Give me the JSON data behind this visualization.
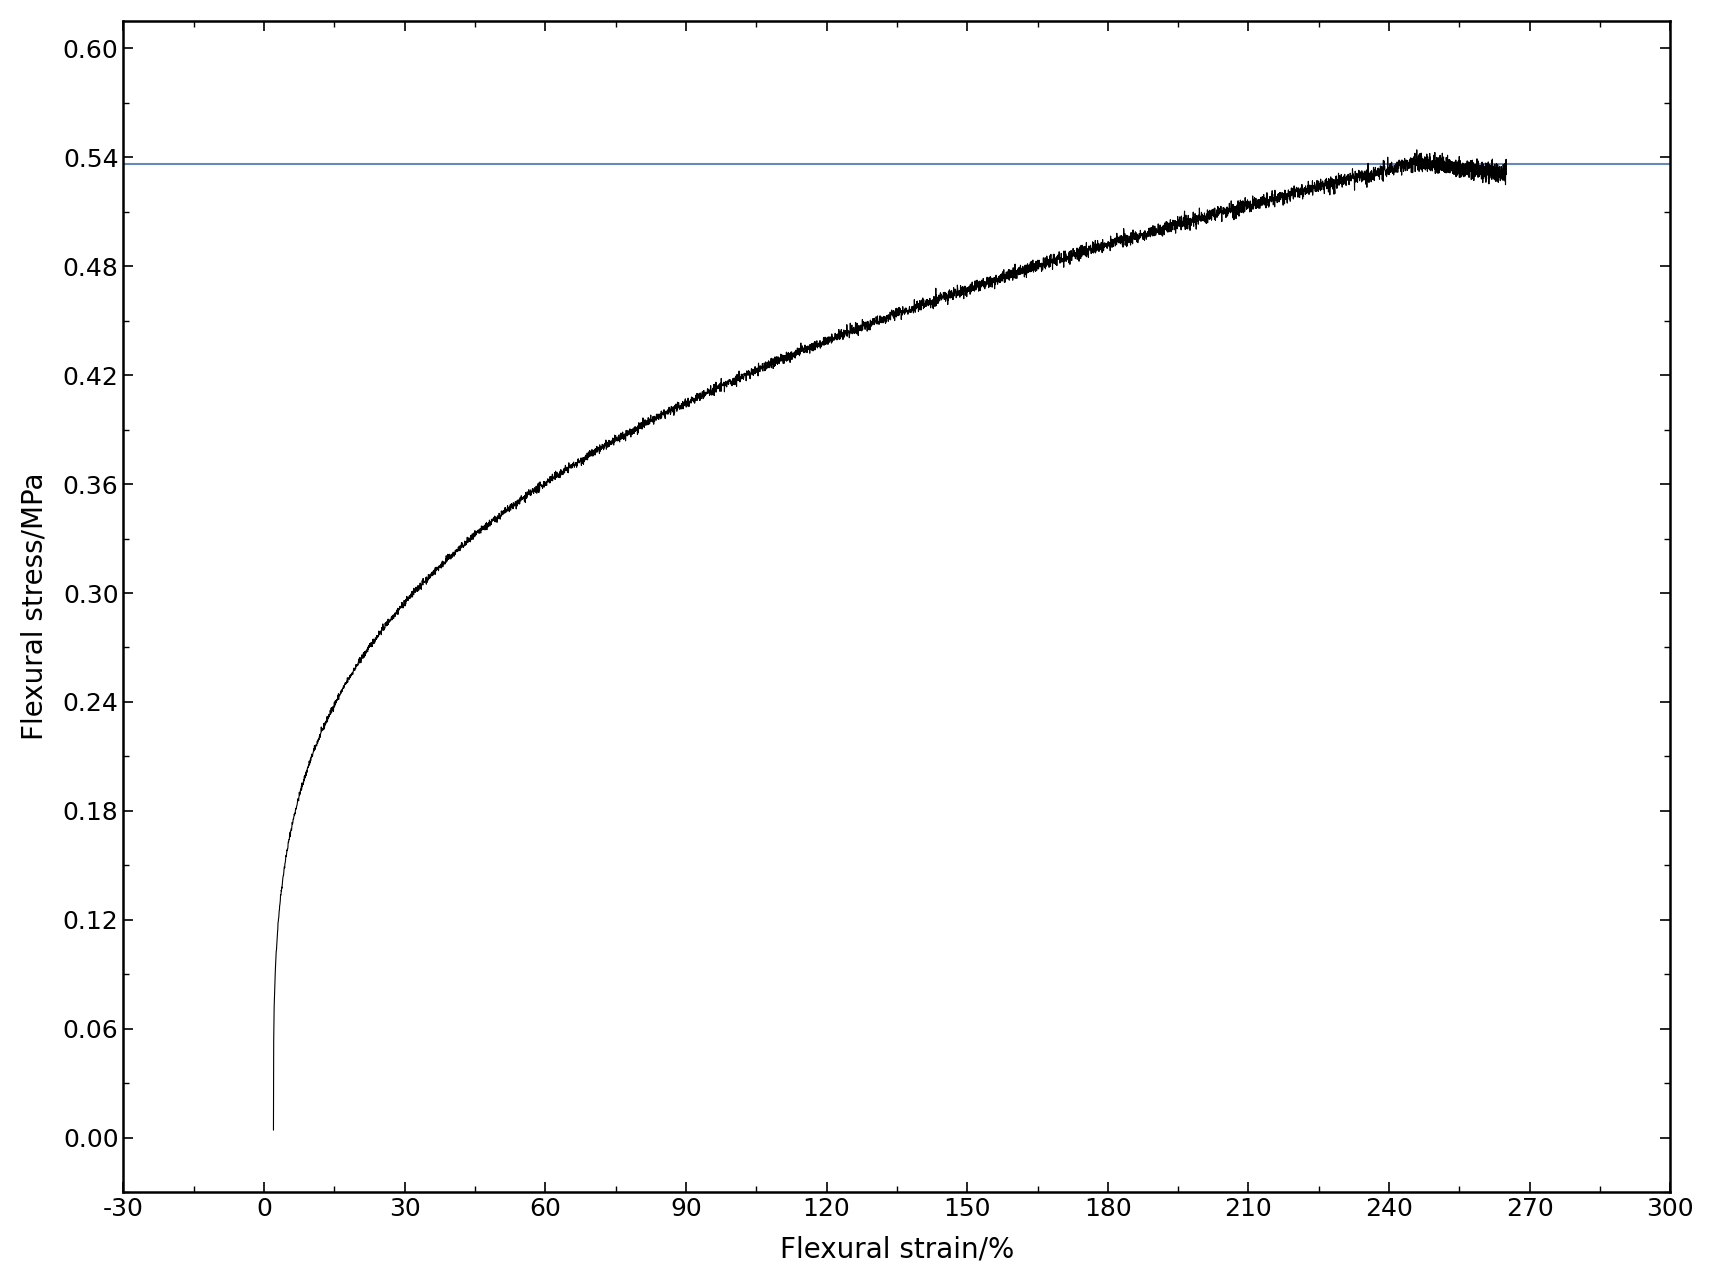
{
  "xlabel": "Flexural strain/%",
  "ylabel": "Flexural stress/MPa",
  "xlim": [
    -30,
    300
  ],
  "ylim": [
    -0.03,
    0.615
  ],
  "xticks": [
    -30,
    0,
    30,
    60,
    90,
    120,
    150,
    180,
    210,
    240,
    270,
    300
  ],
  "yticks": [
    0.0,
    0.06,
    0.12,
    0.18,
    0.24,
    0.3,
    0.36,
    0.42,
    0.48,
    0.54,
    0.6
  ],
  "hline_y": 0.536,
  "hline_color": "#6688bb",
  "curve_start_x": 2.0,
  "curve_start_y": 0.004,
  "curve_peak_x": 246,
  "curve_peak_y": 0.537,
  "curve_end_x": 265,
  "curve_end_y": 0.531,
  "curve_power": 0.28,
  "curve_color": "#000000",
  "noise_amplitude": 0.0025,
  "background_color": "#ffffff",
  "axis_color": "#000000",
  "label_fontsize": 20,
  "tick_fontsize": 18,
  "spine_linewidth": 1.8
}
